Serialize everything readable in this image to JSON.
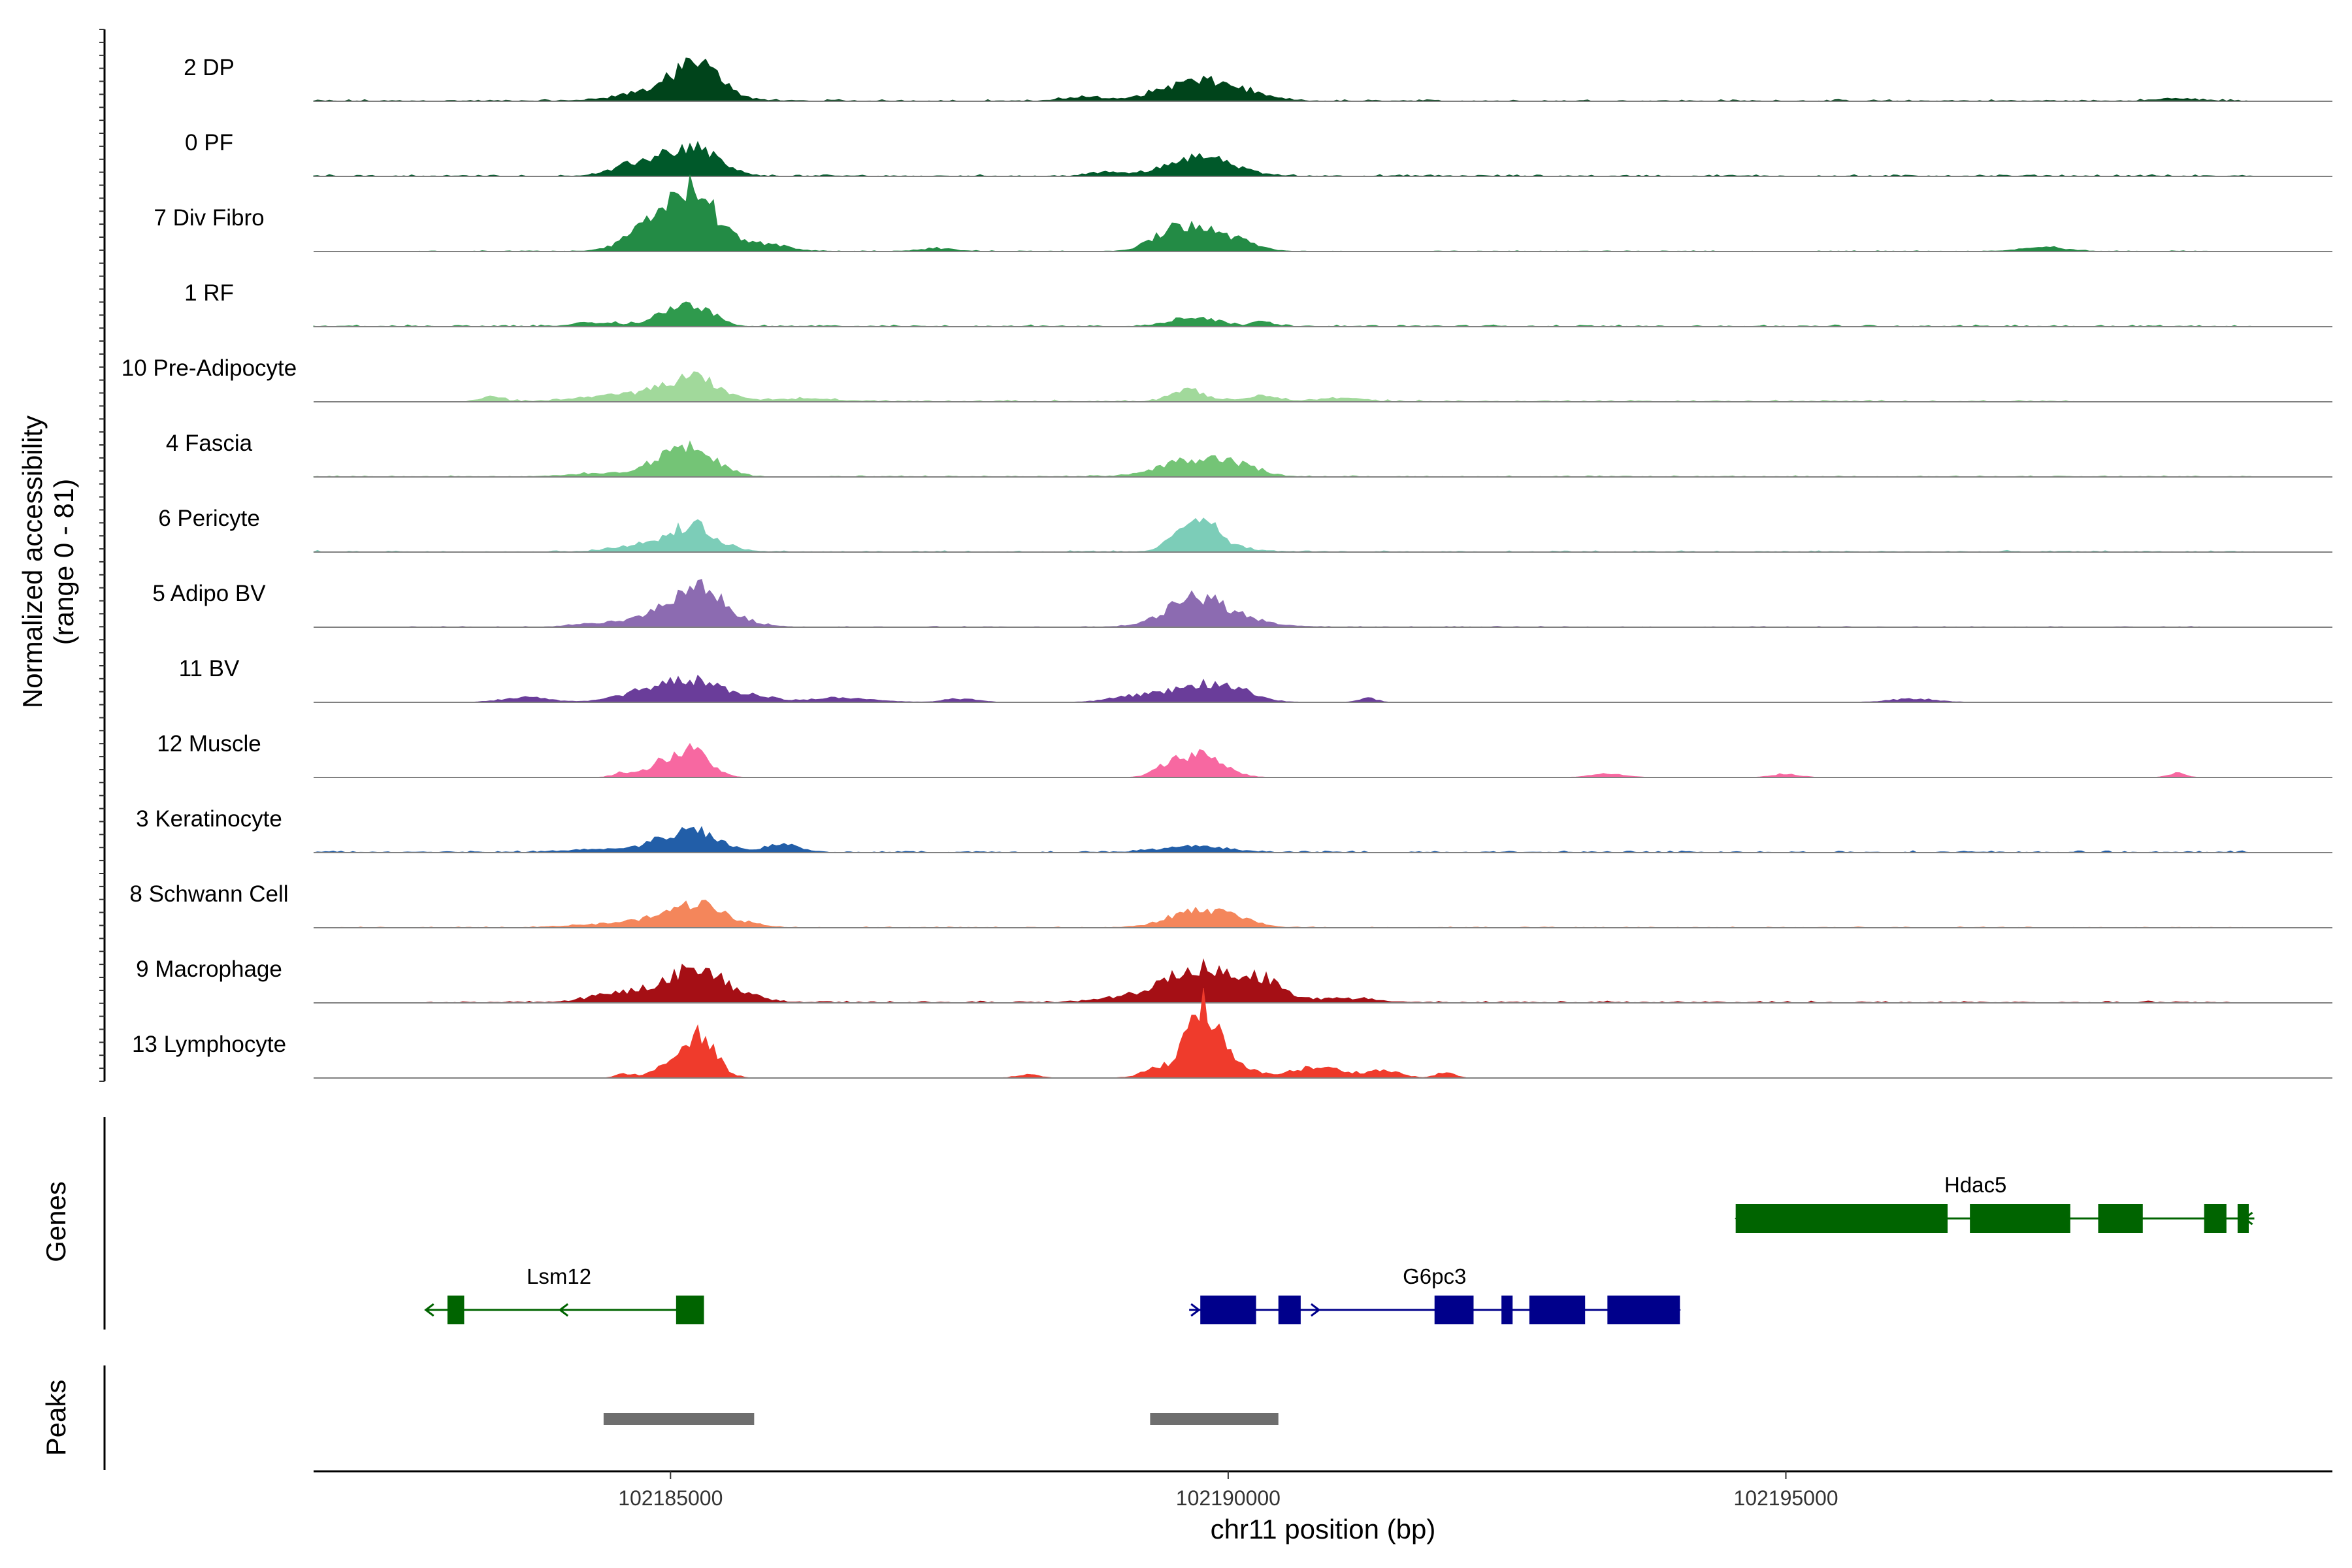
{
  "chart_data": {
    "type": "area",
    "title": "",
    "chromosome": "chr11",
    "xlabel": "chr11 position (bp)",
    "ylabel": [
      "Normalized accessibility",
      "(range 0 - 81)"
    ],
    "ylim": [
      0,
      81
    ],
    "xlim": [
      102181800,
      102199900
    ],
    "x_ticks": [
      102185000,
      102190000,
      102195000
    ],
    "x_tick_labels": [
      "102185000",
      "102190000",
      "102195000"
    ],
    "panels": {
      "genes": "Genes",
      "peaks": "Peaks"
    },
    "tracks": [
      {
        "name": "2 DP",
        "color": "#00441b",
        "noise": 0.03,
        "noise_extent": [
          102181800,
          102199200
        ],
        "peaks": [
          [
            102185000,
            350,
            0.18
          ],
          [
            102185250,
            200,
            0.4
          ],
          [
            102189650,
            300,
            0.24
          ],
          [
            102190050,
            250,
            0.12
          ],
          [
            102188700,
            150,
            0.06
          ],
          [
            102198500,
            200,
            0.03
          ]
        ]
      },
      {
        "name": "0 PF",
        "color": "#00592a",
        "noise": 0.03,
        "noise_extent": [
          102181800,
          102199200
        ],
        "peaks": [
          [
            102184900,
            250,
            0.2
          ],
          [
            102185250,
            200,
            0.34
          ],
          [
            102189650,
            250,
            0.22
          ],
          [
            102189950,
            250,
            0.1
          ],
          [
            102188900,
            150,
            0.05
          ],
          [
            102184650,
            200,
            0.06
          ]
        ]
      },
      {
        "name": "7 Div Fibro",
        "color": "#238b45",
        "noise": 0.015,
        "noise_extent": [
          102182600,
          102198800
        ],
        "peaks": [
          [
            102184950,
            250,
            0.52
          ],
          [
            102185250,
            200,
            0.6
          ],
          [
            102189700,
            250,
            0.36
          ],
          [
            102189450,
            150,
            0.1
          ],
          [
            102185850,
            200,
            0.1
          ],
          [
            102197300,
            200,
            0.06
          ],
          [
            102190150,
            150,
            0.08
          ],
          [
            102187400,
            150,
            0.04
          ]
        ]
      },
      {
        "name": "1 RF",
        "color": "#2f9a4d",
        "noise": 0.03,
        "noise_extent": [
          102181800,
          102199200
        ],
        "peaks": [
          [
            102184950,
            150,
            0.17
          ],
          [
            102185250,
            150,
            0.28
          ],
          [
            102189700,
            200,
            0.14
          ],
          [
            102190300,
            80,
            0.1
          ],
          [
            102184350,
            200,
            0.05
          ]
        ]
      },
      {
        "name": "10 Pre-Adipocyte",
        "color": "#a1d99b",
        "noise": 0.03,
        "noise_extent": [
          102183200,
          102197600
        ],
        "peaks": [
          [
            102185000,
            300,
            0.16
          ],
          [
            102185250,
            200,
            0.22
          ],
          [
            102189650,
            150,
            0.16
          ],
          [
            102190300,
            150,
            0.08
          ],
          [
            102184400,
            300,
            0.06
          ],
          [
            102186200,
            300,
            0.04
          ],
          [
            102191000,
            200,
            0.05
          ],
          [
            102183400,
            100,
            0.07
          ]
        ]
      },
      {
        "name": "4 Fascia",
        "color": "#74c476",
        "noise": 0.02,
        "noise_extent": [
          102181800,
          102199200
        ],
        "peaks": [
          [
            102184950,
            200,
            0.2
          ],
          [
            102185250,
            200,
            0.32
          ],
          [
            102189700,
            300,
            0.24
          ],
          [
            102190100,
            200,
            0.1
          ],
          [
            102184400,
            300,
            0.05
          ]
        ]
      },
      {
        "name": "6 Pericyte",
        "color": "#7ccdb8",
        "noise": 0.025,
        "noise_extent": [
          102181800,
          102199200
        ],
        "peaks": [
          [
            102184900,
            300,
            0.14
          ],
          [
            102185200,
            150,
            0.26
          ],
          [
            102189700,
            150,
            0.48
          ],
          [
            102189850,
            250,
            0.12
          ],
          [
            102185400,
            200,
            0.08
          ]
        ]
      },
      {
        "name": "5 Adipo BV",
        "color": "#8c6bb1",
        "noise": 0.015,
        "noise_extent": [
          102182600,
          102198800
        ],
        "peaks": [
          [
            102184950,
            250,
            0.18
          ],
          [
            102185250,
            200,
            0.48
          ],
          [
            102189700,
            250,
            0.38
          ],
          [
            102190050,
            300,
            0.1
          ],
          [
            102185600,
            200,
            0.08
          ],
          [
            102184350,
            200,
            0.05
          ]
        ]
      },
      {
        "name": "11 BV",
        "color": "#6a3d9a",
        "noise": 0.004,
        "noise_extent": [
          102183000,
          102197000
        ],
        "peaks": [
          [
            102184900,
            300,
            0.2
          ],
          [
            102185300,
            250,
            0.22
          ],
          [
            102189700,
            300,
            0.22
          ],
          [
            102190050,
            200,
            0.12
          ],
          [
            102189100,
            200,
            0.06
          ],
          [
            102183700,
            200,
            0.07
          ],
          [
            102186500,
            300,
            0.06
          ],
          [
            102187600,
            150,
            0.05
          ],
          [
            102191250,
            80,
            0.06
          ],
          [
            102196150,
            200,
            0.05
          ],
          [
            102185800,
            150,
            0.06
          ]
        ]
      },
      {
        "name": "12 Muscle",
        "color": "#f768a1",
        "noise": 0.0,
        "noise_extent": [
          102181800,
          102199200
        ],
        "peaks": [
          [
            102184900,
            100,
            0.2
          ],
          [
            102185200,
            150,
            0.4
          ],
          [
            102189750,
            200,
            0.34
          ],
          [
            102189450,
            120,
            0.1
          ],
          [
            102193400,
            150,
            0.05
          ],
          [
            102195000,
            120,
            0.05
          ],
          [
            102198500,
            80,
            0.06
          ],
          [
            102184600,
            100,
            0.08
          ]
        ]
      },
      {
        "name": "3 Keratinocyte",
        "color": "#225ea8",
        "noise": 0.03,
        "noise_extent": [
          102181800,
          102199200
        ],
        "peaks": [
          [
            102185250,
            200,
            0.3
          ],
          [
            102184900,
            150,
            0.12
          ],
          [
            102186000,
            150,
            0.12
          ],
          [
            102189700,
            300,
            0.08
          ],
          [
            102184400,
            300,
            0.05
          ]
        ]
      },
      {
        "name": "8 Schwann Cell",
        "color": "#f4865b",
        "noise": 0.015,
        "noise_extent": [
          102181800,
          102199200
        ],
        "peaks": [
          [
            102184900,
            250,
            0.12
          ],
          [
            102185250,
            200,
            0.3
          ],
          [
            102189700,
            250,
            0.22
          ],
          [
            102190050,
            200,
            0.1
          ],
          [
            102184350,
            300,
            0.04
          ],
          [
            102185600,
            200,
            0.06
          ]
        ]
      },
      {
        "name": "9 Macrophage",
        "color": "#a50f15",
        "noise": 0.03,
        "noise_extent": [
          102182800,
          102199200
        ],
        "peaks": [
          [
            102184850,
            250,
            0.18
          ],
          [
            102185250,
            200,
            0.46
          ],
          [
            102189700,
            250,
            0.42
          ],
          [
            102190350,
            150,
            0.26
          ],
          [
            102190050,
            200,
            0.18
          ],
          [
            102189200,
            300,
            0.1
          ],
          [
            102185650,
            200,
            0.1
          ],
          [
            102184400,
            200,
            0.08
          ],
          [
            102191000,
            300,
            0.06
          ]
        ]
      },
      {
        "name": "13 Lymphocyte",
        "color": "#ef3b2c",
        "noise": 0.0,
        "noise_extent": [
          102181800,
          102199200
        ],
        "peaks": [
          [
            102185250,
            150,
            0.6
          ],
          [
            102189750,
            130,
            0.9
          ],
          [
            102189950,
            200,
            0.25
          ],
          [
            102189400,
            150,
            0.15
          ],
          [
            102184900,
            100,
            0.12
          ],
          [
            102190800,
            250,
            0.15
          ],
          [
            102191400,
            150,
            0.1
          ],
          [
            102191950,
            80,
            0.08
          ],
          [
            102188200,
            100,
            0.05
          ],
          [
            102184600,
            80,
            0.06
          ]
        ]
      }
    ],
    "genes": [
      {
        "name": "Lsm12",
        "strand": "-",
        "color": "#006400",
        "row": 2,
        "label_x": 102184000,
        "extent": [
          102182800,
          102185300
        ],
        "exons": [
          [
            102183000,
            102183150
          ],
          [
            102185050,
            102185300
          ]
        ]
      },
      {
        "name": "G6pc3",
        "strand": "+",
        "color": "#00008b",
        "row": 2,
        "label_x": 102191850,
        "extent": [
          102189650,
          102194050
        ],
        "exons": [
          [
            102189750,
            102190250
          ],
          [
            102190450,
            102190650
          ],
          [
            102191850,
            102192200
          ],
          [
            102192450,
            102192550
          ],
          [
            102192700,
            102193200
          ],
          [
            102193400,
            102194050
          ]
        ]
      },
      {
        "name": "Hdac5",
        "strand": "-",
        "color": "#006400",
        "row": 1,
        "label_x": 102196700,
        "extent": [
          102194550,
          102199200
        ],
        "exons": [
          [
            102194550,
            102196450
          ],
          [
            102196650,
            102197550
          ],
          [
            102197800,
            102198200
          ],
          [
            102198750,
            102198950
          ],
          [
            102199050,
            102199150
          ]
        ]
      }
    ],
    "peaks_track": [
      [
        102184400,
        102185750
      ],
      [
        102189300,
        102190450
      ]
    ]
  }
}
